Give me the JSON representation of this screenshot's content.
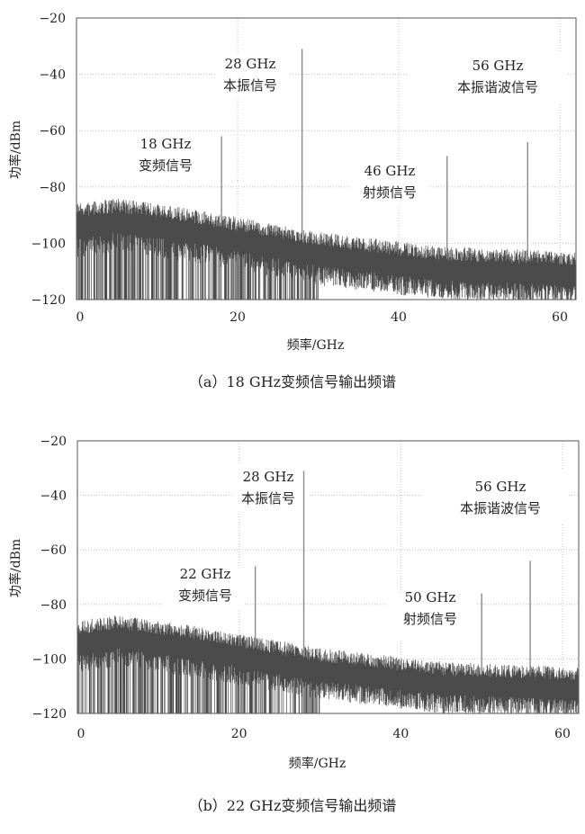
{
  "chart_data": [
    {
      "type": "line",
      "xlabel": "频率/GHz",
      "ylabel": "功率/dBm",
      "xlim": [
        0,
        62
      ],
      "ylim": [
        -120,
        -20
      ],
      "xticks": [
        0,
        20,
        40,
        60
      ],
      "yticks": [
        -20,
        -40,
        -60,
        -80,
        -100,
        -120
      ],
      "grid": true,
      "noise_floor": {
        "x": [
          0,
          5,
          15,
          30,
          45,
          62
        ],
        "y": [
          -94,
          -92,
          -96,
          -104,
          -109,
          -111
        ]
      },
      "peaks": [
        {
          "x": 18,
          "y": -62
        },
        {
          "x": 28,
          "y": -31
        },
        {
          "x": 46,
          "y": -69
        },
        {
          "x": 56,
          "y": -64
        }
      ],
      "annotations": [
        {
          "freq": "18 GHz",
          "text": "变频信号"
        },
        {
          "freq": "28 GHz",
          "text": "本振信号"
        },
        {
          "freq": "46 GHz",
          "text": "射频信号"
        },
        {
          "freq": "56 GHz",
          "text": "本振谐波信号"
        }
      ],
      "caption": "（a）18 GHz变频信号输出频谱"
    },
    {
      "type": "line",
      "xlabel": "频率/GHz",
      "ylabel": "功率/dBm",
      "xlim": [
        0,
        62
      ],
      "ylim": [
        -120,
        -20
      ],
      "xticks": [
        0,
        20,
        40,
        60
      ],
      "yticks": [
        -20,
        -40,
        -60,
        -80,
        -100,
        -120
      ],
      "grid": true,
      "noise_floor": {
        "x": [
          0,
          5,
          15,
          30,
          45,
          62
        ],
        "y": [
          -94,
          -92,
          -96,
          -104,
          -109,
          -111
        ]
      },
      "peaks": [
        {
          "x": 22,
          "y": -66
        },
        {
          "x": 28,
          "y": -31
        },
        {
          "x": 50,
          "y": -76
        },
        {
          "x": 56,
          "y": -64
        }
      ],
      "annotations": [
        {
          "freq": "22 GHz",
          "text": "变频信号"
        },
        {
          "freq": "28 GHz",
          "text": "本振信号"
        },
        {
          "freq": "50 GHz",
          "text": "射频信号"
        },
        {
          "freq": "56 GHz",
          "text": "本振谐波信号"
        }
      ],
      "caption": "（b）22 GHz变频信号输出频谱"
    }
  ]
}
